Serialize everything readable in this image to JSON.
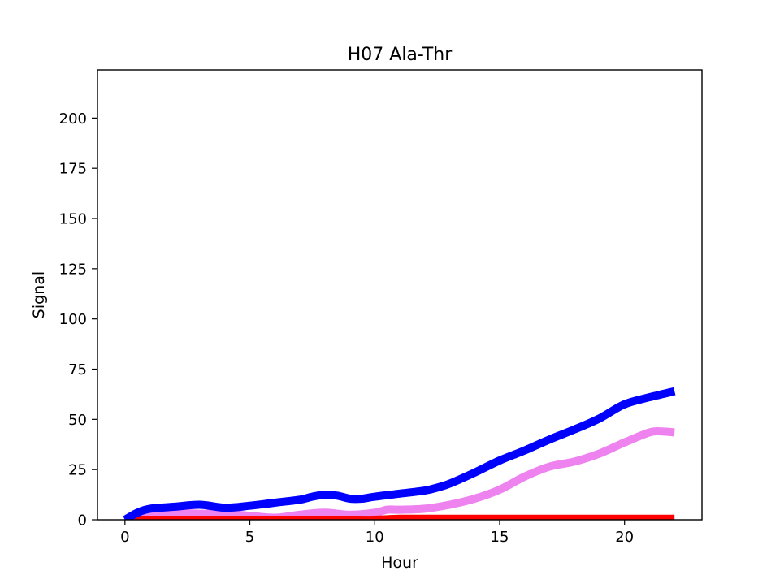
{
  "chart_data": {
    "type": "line",
    "title": "H07 Ala-Thr",
    "xlabel": "Hour",
    "ylabel": "Signal",
    "xlim": [
      -1.1,
      23.1
    ],
    "ylim": [
      0,
      224
    ],
    "xticks": [
      0,
      5,
      10,
      15,
      20
    ],
    "yticks": [
      0,
      25,
      50,
      75,
      100,
      125,
      150,
      175,
      200
    ],
    "grid": false,
    "legend": "none",
    "series": [
      {
        "color": "#0000ff",
        "x": [
          0,
          0.5,
          1,
          2,
          3,
          4,
          5,
          6,
          7,
          7.5,
          8,
          8.5,
          9,
          9.5,
          10,
          11,
          12,
          12.5,
          13,
          14,
          15,
          16,
          17,
          18,
          19,
          20,
          21,
          22
        ],
        "y": [
          0,
          3.5,
          5.5,
          6.5,
          7.5,
          6,
          7,
          8.5,
          10,
          11.5,
          12.5,
          12,
          10.5,
          10.5,
          11.5,
          13,
          14.5,
          16,
          18,
          23.5,
          29.5,
          34.5,
          40,
          45,
          50.5,
          57.5,
          61,
          64
        ]
      },
      {
        "color": "#ee82ee",
        "x": [
          0,
          0.5,
          1,
          2,
          3,
          4,
          5,
          6,
          7,
          8,
          9,
          10,
          10.5,
          11,
          12,
          13,
          14,
          15,
          16,
          17,
          18,
          19,
          20,
          21,
          21.5,
          22
        ],
        "y": [
          0,
          1.5,
          3,
          3.5,
          3,
          3,
          2,
          1,
          2.5,
          3.5,
          2.5,
          3.5,
          5,
          5,
          5.5,
          7.5,
          10.5,
          15,
          21.5,
          26.5,
          29,
          33,
          38.5,
          43.5,
          44,
          43.5
        ]
      },
      {
        "color": "#ff0000",
        "x": [
          0,
          1,
          2,
          3,
          4,
          5,
          6,
          7,
          8,
          9,
          10,
          11,
          12,
          13,
          14,
          15,
          16,
          17,
          18,
          19,
          20,
          21,
          22
        ],
        "y": [
          0,
          0,
          0,
          0,
          0,
          0,
          0,
          0,
          0,
          0,
          0,
          0.5,
          0.5,
          0.5,
          0.5,
          0.5,
          0.5,
          0.5,
          0.5,
          0.5,
          0.5,
          0.5,
          0.5
        ]
      }
    ]
  }
}
